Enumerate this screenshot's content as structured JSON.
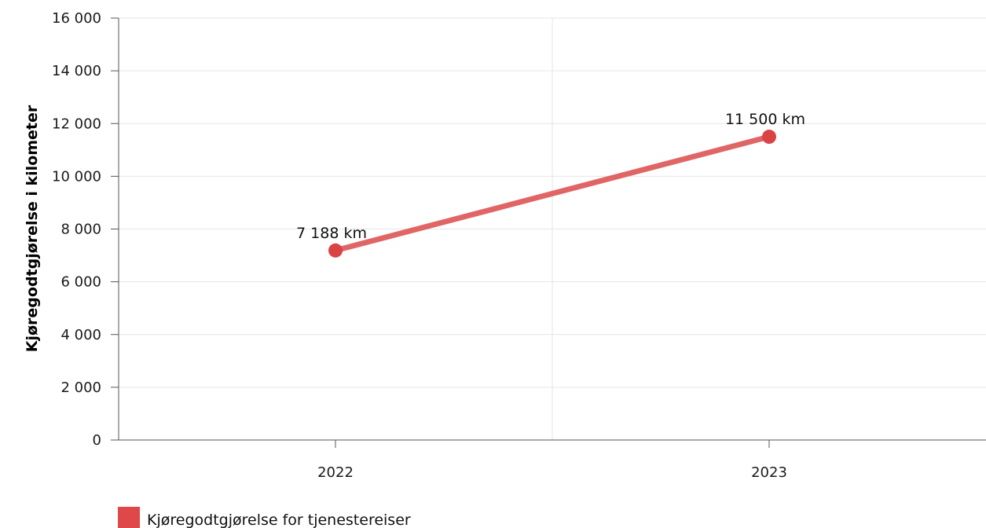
{
  "chart_data": {
    "type": "line",
    "categories": [
      "2022",
      "2023"
    ],
    "series": [
      {
        "name": "Kjøregodtgjørelse for tjenestereiser",
        "values": [
          7188,
          11500
        ],
        "data_labels": [
          "7 188 km",
          "11 500 km"
        ],
        "color": "#e06666",
        "marker_color": "#d94343"
      }
    ],
    "ylabel": "Kjøregodtgjørelse i kilometer",
    "ylim": [
      0,
      16000
    ],
    "yticks": [
      0,
      2000,
      4000,
      6000,
      8000,
      10000,
      12000,
      14000,
      16000
    ],
    "ytick_labels": [
      "0",
      "2 000",
      "4 000",
      "6 000",
      "8 000",
      "10 000",
      "12 000",
      "14 000",
      "16 000"
    ],
    "grid": true,
    "legend_position": "bottom-left",
    "legend_swatch_color": "#de4848"
  }
}
